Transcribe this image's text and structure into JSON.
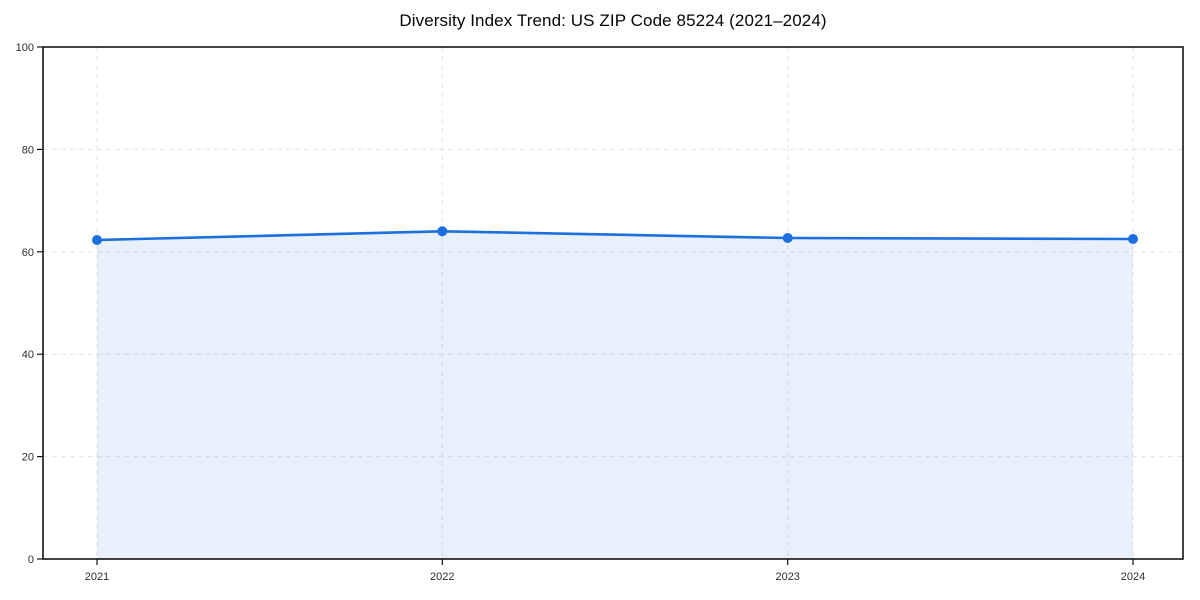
{
  "chart_data": {
    "type": "area",
    "title": "Diversity Index Trend: US ZIP Code 85224 (2021–2024)",
    "x": [
      2021,
      2022,
      2023,
      2024
    ],
    "series": [
      {
        "name": "Diversity Index",
        "values": [
          62.3,
          64.0,
          62.7,
          62.5
        ]
      }
    ],
    "xlabel": "",
    "ylabel": "",
    "ylim": [
      0,
      100
    ],
    "yticks": [
      0,
      20,
      40,
      60,
      80,
      100
    ],
    "grid": true,
    "grid_style": "dashed",
    "legend": false,
    "marker": "circle",
    "colors": {
      "line": "#1b6fde",
      "marker": "#1b6fde",
      "fill": "rgba(31, 111, 223, 0.10)",
      "grid": "#e4e4e4",
      "axis": "#141414",
      "tick_label": "#2e2e2e",
      "title": "#050505",
      "background": "#ffffff"
    }
  }
}
